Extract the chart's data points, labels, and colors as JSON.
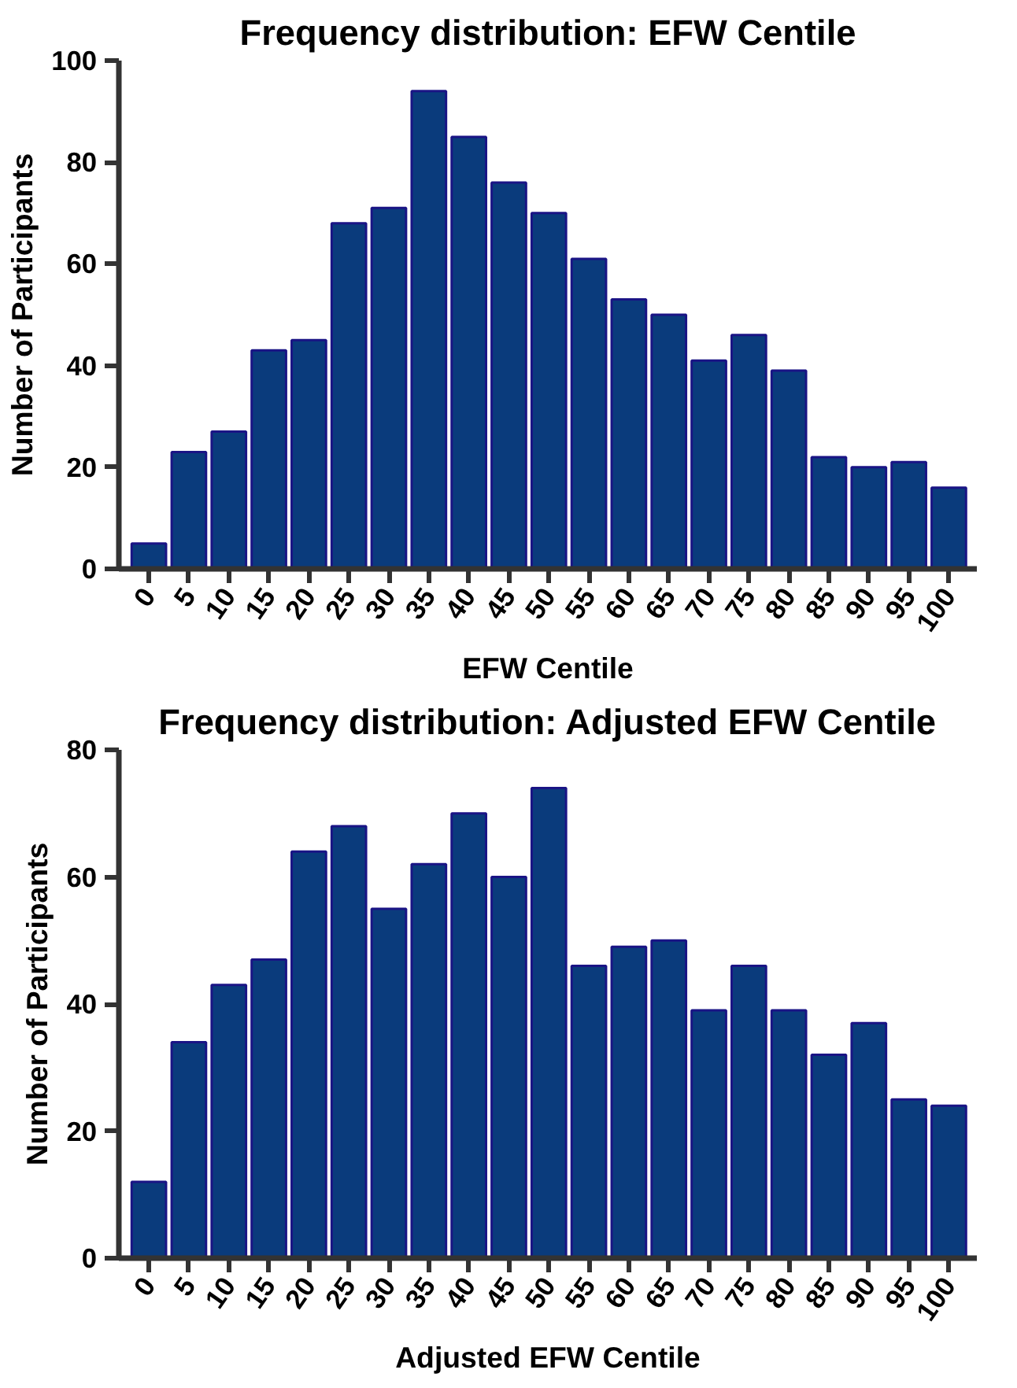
{
  "chart_data": [
    {
      "type": "bar",
      "title": "Frequency distribution: EFW Centile",
      "xlabel": "EFW Centile",
      "ylabel": "Number of Participants",
      "categories": [
        "0",
        "5",
        "10",
        "15",
        "20",
        "25",
        "30",
        "35",
        "40",
        "45",
        "50",
        "55",
        "60",
        "65",
        "70",
        "75",
        "80",
        "85",
        "90",
        "95",
        "100"
      ],
      "values": [
        5,
        23,
        27,
        43,
        45,
        68,
        71,
        94,
        85,
        76,
        70,
        61,
        53,
        50,
        41,
        46,
        39,
        22,
        20,
        21,
        16
      ],
      "color": "#0a3b7c",
      "ylim": [
        0,
        100
      ],
      "yticks": [
        0,
        20,
        40,
        60,
        80,
        100
      ],
      "grid": false
    },
    {
      "type": "bar",
      "title": "Frequency distribution: Adjusted EFW Centile",
      "xlabel": "Adjusted EFW Centile",
      "ylabel": "Number of Participants",
      "categories": [
        "0",
        "5",
        "10",
        "15",
        "20",
        "25",
        "30",
        "35",
        "40",
        "45",
        "50",
        "55",
        "60",
        "65",
        "70",
        "75",
        "80",
        "85",
        "90",
        "95",
        "100"
      ],
      "values": [
        12,
        34,
        43,
        47,
        64,
        68,
        55,
        62,
        70,
        60,
        74,
        46,
        49,
        50,
        39,
        46,
        39,
        32,
        37,
        25,
        24
      ],
      "color": "#0a3b7c",
      "ylim": [
        0,
        80
      ],
      "yticks": [
        0,
        20,
        40,
        60,
        80
      ],
      "grid": false
    }
  ]
}
